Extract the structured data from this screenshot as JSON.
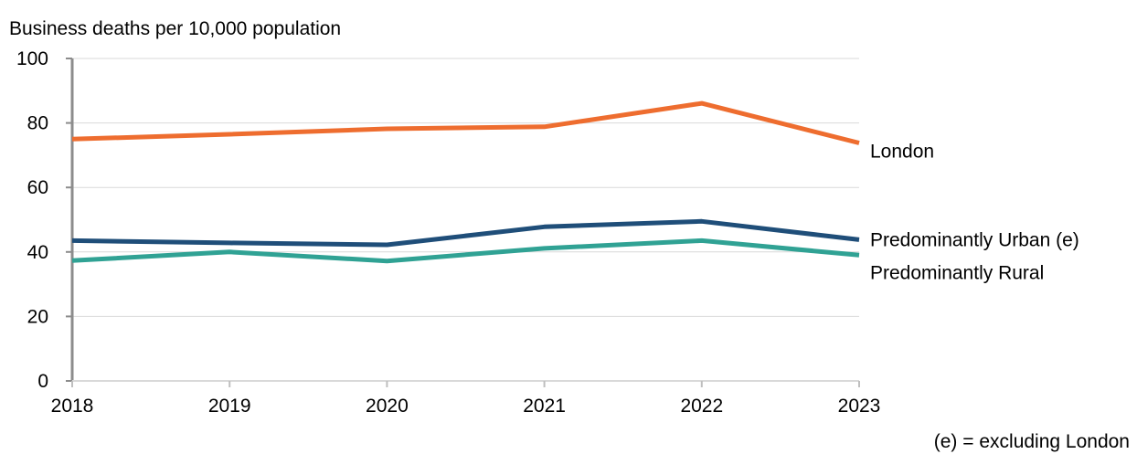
{
  "chart_data": {
    "type": "line",
    "ylabel": "Business deaths per 10,000 population",
    "x": [
      "2018",
      "2019",
      "2020",
      "2021",
      "2022",
      "2023"
    ],
    "ylim": [
      0,
      100
    ],
    "yticks": [
      "0",
      "20",
      "40",
      "60",
      "80",
      "100"
    ],
    "grid": true,
    "legend": "direct labels at line ends",
    "series": [
      {
        "name": "London",
        "color": "#ee6d2f",
        "values": [
          75.0,
          76.5,
          78.2,
          78.8,
          86.1,
          73.8
        ]
      },
      {
        "name": "Predominantly Urban (e)",
        "color": "#1f4e79",
        "values": [
          43.5,
          42.8,
          42.2,
          47.8,
          49.5,
          43.8
        ]
      },
      {
        "name": "Predominantly Rural",
        "color": "#30a294",
        "values": [
          37.3,
          40.0,
          37.2,
          41.1,
          43.5,
          39.0
        ]
      }
    ],
    "note": "(e) = excluding London"
  }
}
